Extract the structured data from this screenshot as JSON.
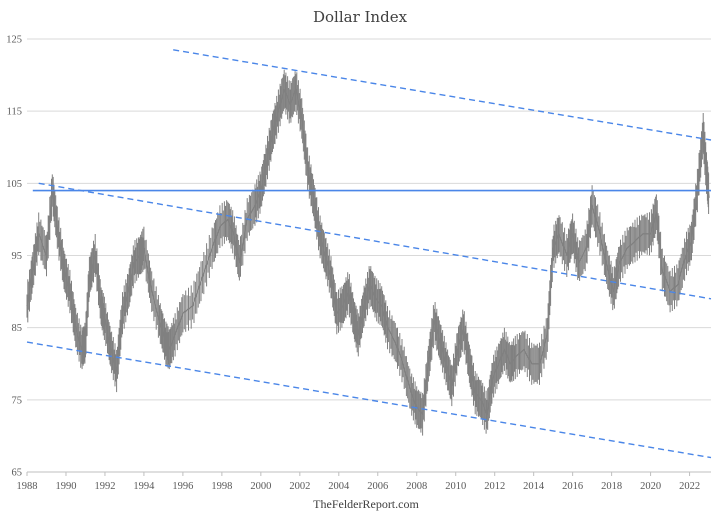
{
  "chart_data": {
    "type": "line",
    "title": "Dollar Index",
    "source": "TheFelderReport.com",
    "xlabel": "",
    "ylabel": "",
    "xlim": [
      1988,
      2023.1
    ],
    "ylim": [
      65,
      125
    ],
    "x_ticks": [
      1988,
      1990,
      1992,
      1994,
      1996,
      1998,
      2000,
      2002,
      2004,
      2006,
      2008,
      2010,
      2012,
      2014,
      2016,
      2018,
      2020,
      2022
    ],
    "y_ticks": [
      65,
      75,
      85,
      95,
      105,
      115,
      125
    ],
    "grid": "horizontal",
    "colors": {
      "price": "#808080",
      "level": "#4a86e8",
      "trend": "#4a86e8",
      "grid": "#d9d9d9"
    },
    "series": [
      {
        "style": "price",
        "x": [
          1988.0,
          1988.3,
          1988.6,
          1989.0,
          1989.3,
          1989.6,
          1989.9,
          1990.2,
          1990.5,
          1990.8,
          1991.0,
          1991.2,
          1991.5,
          1991.8,
          1992.0,
          1992.3,
          1992.6,
          1992.9,
          1993.2,
          1993.5,
          1993.8,
          1994.0,
          1994.4,
          1994.8,
          1995.1,
          1995.3,
          1995.6,
          1996.0,
          1996.5,
          1997.0,
          1997.5,
          1997.9,
          1998.3,
          1998.6,
          1998.9,
          1999.3,
          1999.7,
          2000.0,
          2000.3,
          2000.6,
          2000.9,
          2001.2,
          2001.5,
          2001.8,
          2002.1,
          2002.4,
          2002.7,
          2003.0,
          2003.3,
          2003.6,
          2003.9,
          2004.2,
          2004.5,
          2004.8,
          2005.0,
          2005.3,
          2005.6,
          2005.9,
          2006.2,
          2006.5,
          2006.9,
          2007.3,
          2007.7,
          2008.0,
          2008.3,
          2008.6,
          2008.9,
          2009.2,
          2009.5,
          2009.8,
          2010.1,
          2010.4,
          2010.7,
          2011.0,
          2011.3,
          2011.6,
          2011.9,
          2012.2,
          2012.5,
          2012.8,
          2013.1,
          2013.5,
          2013.9,
          2014.3,
          2014.7,
          2015.0,
          2015.3,
          2015.7,
          2016.0,
          2016.3,
          2016.7,
          2017.0,
          2017.4,
          2017.8,
          2018.1,
          2018.4,
          2018.8,
          2019.2,
          2019.6,
          2020.0,
          2020.3,
          2020.6,
          2021.0,
          2021.4,
          2021.8,
          2022.1,
          2022.4,
          2022.7,
          2022.85,
          2023.0
        ],
        "y": [
          88,
          93,
          98,
          95,
          104,
          98,
          93,
          90,
          85,
          82,
          83,
          92,
          95,
          88,
          86,
          82,
          79,
          87,
          90,
          94,
          95,
          96,
          90,
          86,
          83,
          82,
          84,
          87,
          88,
          92,
          96,
          99,
          100,
          98,
          94,
          100,
          102,
          104,
          108,
          112,
          115,
          118,
          116,
          118,
          114,
          107,
          103,
          98,
          95,
          92,
          87,
          88,
          90,
          86,
          84,
          88,
          91,
          89,
          88,
          85,
          83,
          80,
          76,
          74,
          73,
          80,
          86,
          83,
          80,
          77,
          82,
          85,
          80,
          76,
          75,
          73,
          78,
          80,
          82,
          80,
          81,
          82,
          80,
          80,
          84,
          96,
          98,
          95,
          98,
          94,
          96,
          102,
          98,
          93,
          90,
          94,
          96,
          97,
          98,
          98,
          101,
          93,
          90,
          91,
          95,
          97,
          104,
          112,
          107,
          103
        ]
      },
      {
        "style": "level",
        "x": [
          1988.3,
          2023.1
        ],
        "y": [
          104,
          104
        ]
      },
      {
        "style": "trend",
        "x": [
          1995.5,
          2023.1
        ],
        "y": [
          123.5,
          111
        ]
      },
      {
        "style": "trend",
        "x": [
          1988.6,
          2023.1
        ],
        "y": [
          105,
          89
        ]
      },
      {
        "style": "trend",
        "x": [
          1988.0,
          2023.1
        ],
        "y": [
          83,
          67
        ]
      }
    ]
  }
}
